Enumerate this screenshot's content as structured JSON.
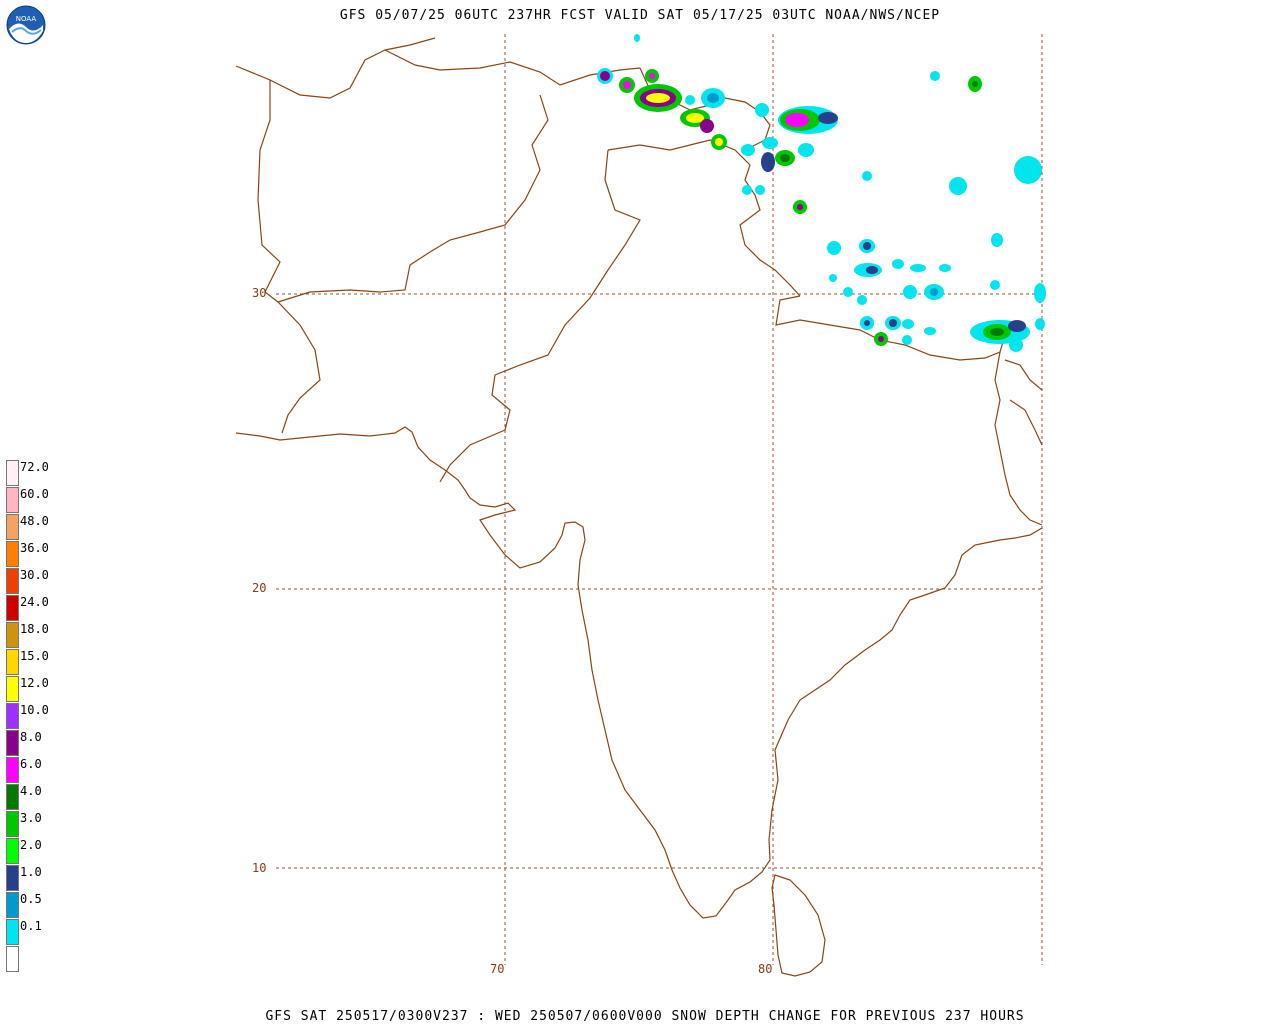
{
  "header": {
    "title": "GFS 05/07/25 06UTC 237HR FCST VALID SAT 05/17/25 03UTC NOAA/NWS/NCEP"
  },
  "footer": {
    "text": "GFS SAT 250517/0300V237 : WED 250507/0600V000 SNOW DEPTH CHANGE FOR PREVIOUS 237 HOURS"
  },
  "logo": {
    "text": "NOAA"
  },
  "grid": {
    "lat_labels": [
      "30",
      "20",
      "10"
    ],
    "lon_labels": [
      "70",
      "80"
    ],
    "line_color": "#8b3a1a"
  },
  "legend": {
    "items": [
      {
        "label": "",
        "color": "#ffffff"
      },
      {
        "label": "0.1",
        "color": "#00e5ee"
      },
      {
        "label": "0.5",
        "color": "#009acd"
      },
      {
        "label": "1.0",
        "color": "#27408b"
      },
      {
        "label": "2.0",
        "color": "#00ff00"
      },
      {
        "label": "3.0",
        "color": "#00c800"
      },
      {
        "label": "4.0",
        "color": "#007a00"
      },
      {
        "label": "6.0",
        "color": "#ff00ff"
      },
      {
        "label": "8.0",
        "color": "#8b008b"
      },
      {
        "label": "10.0",
        "color": "#9b30ff"
      },
      {
        "label": "12.0",
        "color": "#ffff00"
      },
      {
        "label": "15.0",
        "color": "#ffd700"
      },
      {
        "label": "18.0",
        "color": "#cd950c"
      },
      {
        "label": "24.0",
        "color": "#cd0000"
      },
      {
        "label": "30.0",
        "color": "#ee4000"
      },
      {
        "label": "36.0",
        "color": "#ff7f00"
      },
      {
        "label": "48.0",
        "color": "#f4a460"
      },
      {
        "label": "60.0",
        "color": "#ffb6c1"
      },
      {
        "label": "72.0",
        "color": "#fff0f5"
      }
    ]
  },
  "colors": {
    "boundary": "#8b4513",
    "grid": "#a0522d"
  }
}
